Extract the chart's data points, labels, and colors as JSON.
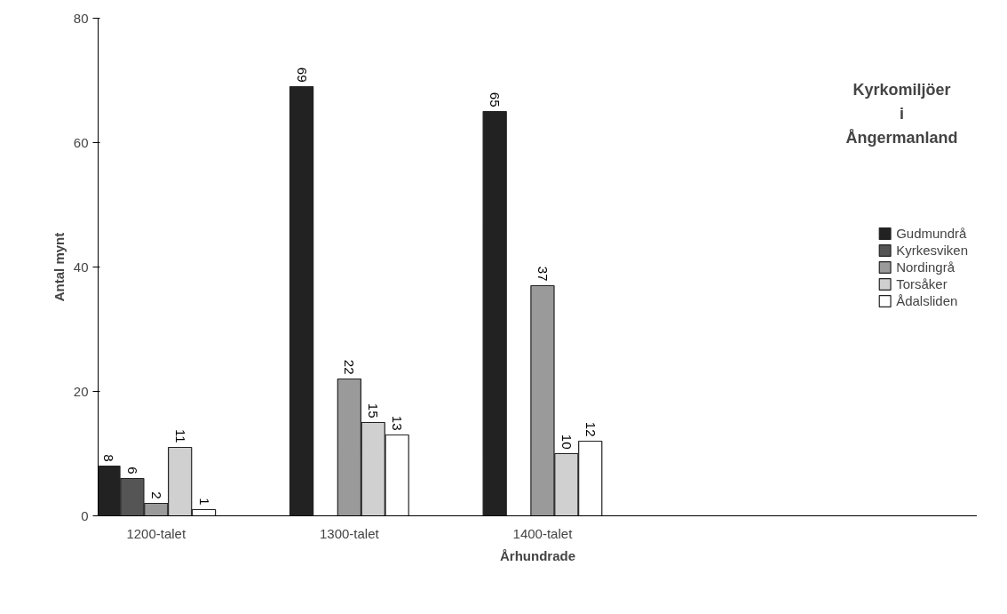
{
  "chart_data": {
    "type": "bar",
    "xlabel": "Århundrade",
    "ylabel": "Antal mynt",
    "legend_title": "Kyrkomiljöer i Ångermanland",
    "categories": [
      "1200-talet",
      "1300-talet",
      "1400-talet"
    ],
    "series": [
      {
        "name": "Gudmundrå",
        "color": "#222222",
        "values": [
          8,
          69,
          65
        ]
      },
      {
        "name": "Kyrkesviken",
        "color": "#555555",
        "values": [
          6,
          null,
          null
        ]
      },
      {
        "name": "Nordingrå",
        "color": "#9a9a9a",
        "values": [
          2,
          22,
          37
        ]
      },
      {
        "name": "Torsåker",
        "color": "#d0d0d0",
        "values": [
          11,
          15,
          10
        ]
      },
      {
        "name": "Ådalsliden",
        "color": "#ffffff",
        "values": [
          1,
          13,
          12
        ]
      }
    ],
    "ylim": [
      0,
      80
    ],
    "yticks": [
      0,
      20,
      40,
      60,
      80
    ],
    "grid": false,
    "legend": "right",
    "data_labels": true
  }
}
